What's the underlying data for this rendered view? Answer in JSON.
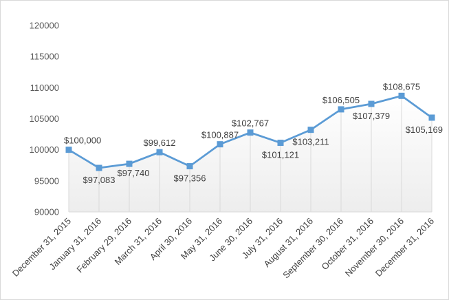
{
  "chart_data": {
    "type": "area",
    "categories": [
      "December 31, 2015",
      "January 31, 2016",
      "February 29, 2016",
      "March 31, 2016",
      "April 30, 2016",
      "May 31, 2016",
      "June 30, 2016",
      "July 31, 2016",
      "August 31, 2016",
      "September 30, 2016",
      "October 31, 2016",
      "November 30, 2016",
      "December 31, 2016"
    ],
    "values": [
      100000,
      97083,
      97740,
      99612,
      97356,
      100887,
      102767,
      101121,
      103211,
      106505,
      107379,
      108675,
      105169
    ],
    "data_labels": [
      "$100,000",
      "$97,083",
      "$97,740",
      "$99,612",
      "$97,356",
      "$100,887",
      "$102,767",
      "$101,121",
      "$103,211",
      "$106,505",
      "$107,379",
      "$108,675",
      "$105,169"
    ],
    "label_positions": [
      "above",
      "below",
      "right",
      "above",
      "below",
      "above",
      "above",
      "below",
      "below",
      "above",
      "below",
      "above",
      "below"
    ],
    "y_ticks": [
      "90000",
      "95000",
      "100000",
      "105000",
      "110000",
      "115000",
      "120000"
    ],
    "ylim": [
      90000,
      120000
    ],
    "grid": false,
    "drop_lines": true,
    "colors": {
      "line": "#5b9bd5",
      "marker": "#5b9bd5",
      "area_top": "#ffffff",
      "area_bottom": "#ededed",
      "drop_line": "#d9d9d9",
      "axis": "#d9d9d9"
    }
  }
}
